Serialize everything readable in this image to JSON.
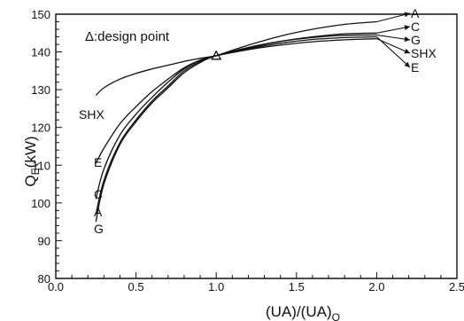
{
  "chart_data": {
    "type": "line",
    "xlabel": "(UA)/(UA)",
    "xlabel_sub": "O",
    "ylabel": "Q",
    "ylabel_sub": "E",
    "ylabel_unit": "(kW)",
    "xlim": [
      0.0,
      2.5
    ],
    "ylim": [
      80,
      150
    ],
    "x_ticks": [
      0.0,
      0.5,
      1.0,
      1.5,
      2.0,
      2.5
    ],
    "x_tick_labels": [
      "0.0",
      "0.5",
      "1.0",
      "1.5",
      "2.0",
      "2.5"
    ],
    "y_ticks": [
      80,
      90,
      100,
      110,
      120,
      130,
      140,
      150
    ],
    "y_tick_labels": [
      "80",
      "90",
      "100",
      "110",
      "120",
      "130",
      "140",
      "150"
    ],
    "annotation": "Δ:design point",
    "design_point": {
      "x": 1.0,
      "y": 139
    },
    "series": [
      {
        "name": "A",
        "x": [
          0.25,
          0.3,
          0.4,
          0.5,
          0.6,
          0.7,
          0.8,
          0.9,
          1.0,
          1.2,
          1.4,
          1.6,
          1.8,
          2.0
        ],
        "y": [
          97,
          106,
          116,
          122,
          127,
          131,
          135,
          137.5,
          139,
          141.8,
          144.2,
          146,
          147.3,
          148
        ]
      },
      {
        "name": "C",
        "x": [
          0.25,
          0.3,
          0.4,
          0.5,
          0.6,
          0.7,
          0.8,
          0.9,
          1.0,
          1.2,
          1.4,
          1.6,
          1.8,
          2.0
        ],
        "y": [
          101,
          109,
          118,
          123.5,
          128,
          132,
          135.5,
          137.8,
          139,
          141,
          142.8,
          144,
          144.8,
          145
        ]
      },
      {
        "name": "G",
        "x": [
          0.25,
          0.3,
          0.4,
          0.5,
          0.6,
          0.7,
          0.8,
          0.9,
          1.0,
          1.2,
          1.4,
          1.6,
          1.8,
          2.0
        ],
        "y": [
          95,
          105,
          115.5,
          121.5,
          126.5,
          130.5,
          134.5,
          137.2,
          139,
          141.2,
          142.8,
          143.8,
          144.4,
          144.5
        ]
      },
      {
        "name": "SHX",
        "x": [
          0.25,
          0.3,
          0.4,
          0.5,
          0.6,
          0.7,
          0.8,
          0.9,
          1.0,
          1.2,
          1.4,
          1.6,
          1.8,
          2.0
        ],
        "y": [
          128.5,
          130.5,
          132.8,
          134.3,
          135.5,
          136.5,
          137.5,
          138.3,
          139,
          140.6,
          141.8,
          142.7,
          143.2,
          143.5
        ]
      },
      {
        "name": "E",
        "x": [
          0.25,
          0.3,
          0.4,
          0.5,
          0.6,
          0.7,
          0.8,
          0.9,
          1.0,
          1.2,
          1.4,
          1.6,
          1.8,
          2.0
        ],
        "y": [
          110.5,
          114.5,
          121,
          125.5,
          129.5,
          132.8,
          135.8,
          137.8,
          139,
          140.8,
          142.3,
          143.3,
          143.8,
          144
        ]
      }
    ],
    "end_labels": {
      "left": [
        "SHX",
        "E",
        "C",
        "A",
        "G"
      ],
      "right": [
        "A",
        "C",
        "G",
        "SHX",
        "E"
      ]
    }
  }
}
